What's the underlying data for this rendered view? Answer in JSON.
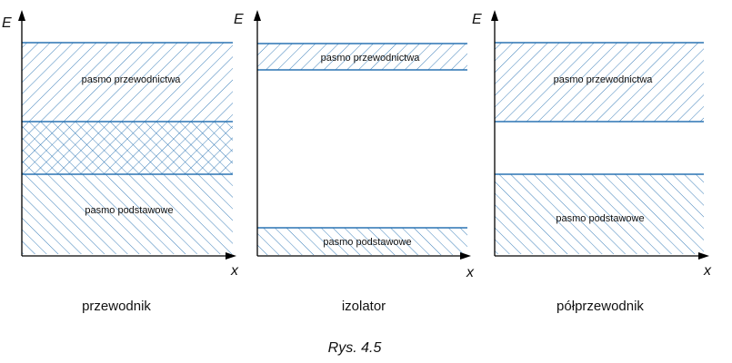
{
  "figure": {
    "caption": "Rys. 4.5",
    "hatch_color": "#2a74b3",
    "axis_color": "#000000",
    "panels": [
      {
        "title": "przewodnik",
        "y_label": "E",
        "x_label": "x",
        "bands": [
          {
            "label": "pasmo przewodnictwa",
            "pattern": "diagonal-right"
          },
          {
            "label": "",
            "pattern": "crosshatch"
          },
          {
            "label": "pasmo podstawowe",
            "pattern": "diagonal-left"
          }
        ]
      },
      {
        "title": "izolator",
        "y_label": "E",
        "x_label": "x",
        "bands": [
          {
            "label": "pasmo przewodnictwa",
            "pattern": "diagonal-right"
          },
          {
            "label": "pasmo podstawowe",
            "pattern": "diagonal-left"
          }
        ]
      },
      {
        "title": "półprzewodnik",
        "y_label": "E",
        "x_label": "x",
        "bands": [
          {
            "label": "pasmo przewodnictwa",
            "pattern": "diagonal-right"
          },
          {
            "label": "pasmo podstawowe",
            "pattern": "diagonal-left"
          }
        ]
      }
    ]
  }
}
